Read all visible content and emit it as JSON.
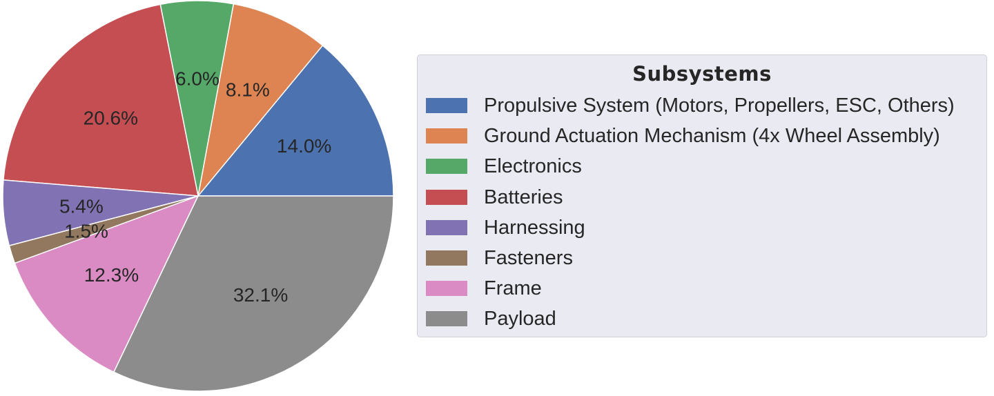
{
  "chart_data": {
    "type": "pie",
    "legend_title": "Subsystems",
    "legend_position": "right",
    "slices": [
      {
        "name": "Propulsive System (Motors, Propellers, ESC, Others)",
        "value": 14.0,
        "label": "14.0%",
        "color": "#4c72b0"
      },
      {
        "name": "Ground Actuation Mechanism (4x Wheel Assembly)",
        "value": 8.1,
        "label": "8.1%",
        "color": "#dd8452"
      },
      {
        "name": "Electronics",
        "value": 6.0,
        "label": "6.0%",
        "color": "#55a868"
      },
      {
        "name": "Batteries",
        "value": 20.6,
        "label": "20.6%",
        "color": "#c44e52"
      },
      {
        "name": "Harnessing",
        "value": 5.4,
        "label": "5.4%",
        "color": "#8172b3"
      },
      {
        "name": "Fasteners",
        "value": 1.5,
        "label": "1.5%",
        "color": "#937860"
      },
      {
        "name": "Frame",
        "value": 12.3,
        "label": "12.3%",
        "color": "#da8bc3"
      },
      {
        "name": "Payload",
        "value": 32.1,
        "label": "32.1%",
        "color": "#8c8c8c"
      }
    ]
  }
}
